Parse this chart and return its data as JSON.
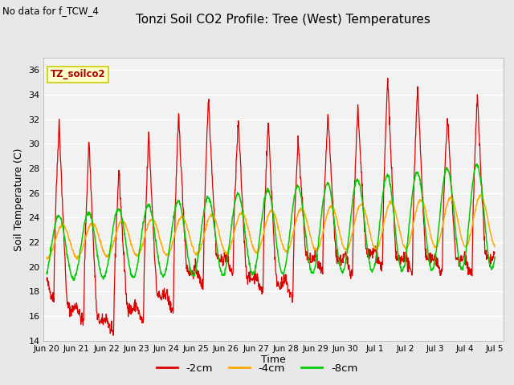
{
  "title": "Tonzi Soil CO2 Profile: Tree (West) Temperatures",
  "no_data_text": "No data for f_TCW_4",
  "ylabel": "Soil Temperature (C)",
  "xlabel": "Time",
  "ylim": [
    14,
    37
  ],
  "yticks": [
    14,
    16,
    18,
    20,
    22,
    24,
    26,
    28,
    30,
    32,
    34,
    36
  ],
  "background_color": "#e8e8e8",
  "plot_bg_color": "#f2f2f2",
  "grid_color": "#ffffff",
  "annotation_box": "TZ_soilco2",
  "annotation_color": "#aa0000",
  "annotation_bg": "#ffffcc",
  "annotation_border": "#cccc00",
  "series": [
    {
      "label": "-2cm",
      "color": "#dd0000"
    },
    {
      "label": "-4cm",
      "color": "#ffaa00"
    },
    {
      "label": "-8cm",
      "color": "#00cc00"
    }
  ],
  "xtick_labels": [
    "Jun 20",
    "Jun 21",
    "Jun 22",
    "Jun 23",
    "Jun 24",
    "Jun 25",
    "Jun 26",
    "Jun 27",
    "Jun 28",
    "Jun 29",
    "Jun 30",
    "Jul 1",
    "Jul 2",
    "Jul 3",
    "Jul 4",
    "Jul 5"
  ],
  "num_days": 15,
  "xlim_left": -0.1,
  "xlim_right": 15.3
}
